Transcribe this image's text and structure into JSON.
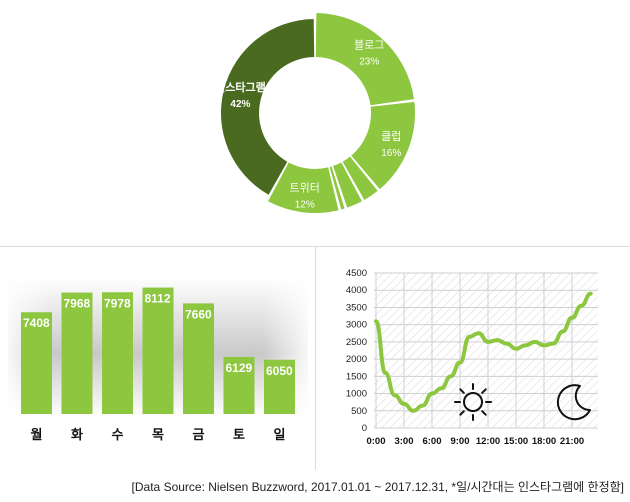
{
  "chart_data": [
    {
      "type": "pie",
      "slices": [
        {
          "label": "블로그",
          "value": 23,
          "display": "23%"
        },
        {
          "label": "클럽",
          "value": 16,
          "display": "16%"
        },
        {
          "label": "",
          "value": 3,
          "display": ""
        },
        {
          "label": "",
          "value": 3,
          "display": ""
        },
        {
          "label": "",
          "value": 1,
          "display": ""
        },
        {
          "label": "트위터",
          "value": 12,
          "display": "12%"
        },
        {
          "label": "인스타그램",
          "value": 42,
          "display": "42%"
        }
      ],
      "colors": {
        "light": "#8dc63f",
        "dark": "#4a6b1f"
      }
    },
    {
      "type": "bar",
      "categories": [
        "월",
        "화",
        "수",
        "목",
        "금",
        "토",
        "일"
      ],
      "values": [
        7408,
        7968,
        7978,
        8112,
        7660,
        6129,
        6050
      ],
      "color": "#8dc63f"
    },
    {
      "type": "line",
      "x": [
        0,
        1,
        2,
        3,
        4,
        5,
        6,
        7,
        8,
        9,
        10,
        11,
        12,
        13,
        14,
        15,
        16,
        17,
        18,
        19,
        20,
        21,
        22,
        23
      ],
      "y": [
        3100,
        1600,
        950,
        700,
        500,
        650,
        1000,
        1150,
        1500,
        1900,
        2650,
        2750,
        2500,
        2550,
        2450,
        2300,
        2400,
        2500,
        2400,
        2450,
        2800,
        3200,
        3550,
        3900
      ],
      "xticks": [
        "0:00",
        "3:00",
        "6:00",
        "9:00",
        "12:00",
        "15:00",
        "18:00",
        "21:00"
      ],
      "yticks": [
        "0",
        "500",
        "1000",
        "1500",
        "2000",
        "2500",
        "3000",
        "3500",
        "4000",
        "4500"
      ],
      "ylim": [
        0,
        4500
      ],
      "grid": true,
      "color": "#8dc63f",
      "icons": [
        "sun-icon",
        "moon-icon"
      ]
    }
  ],
  "source_text": "[Data Source: Nielsen  Buzzword, 2017.01.01 ~ 2017.12.31, *일/시간대는 인스타그램에 한정함]"
}
